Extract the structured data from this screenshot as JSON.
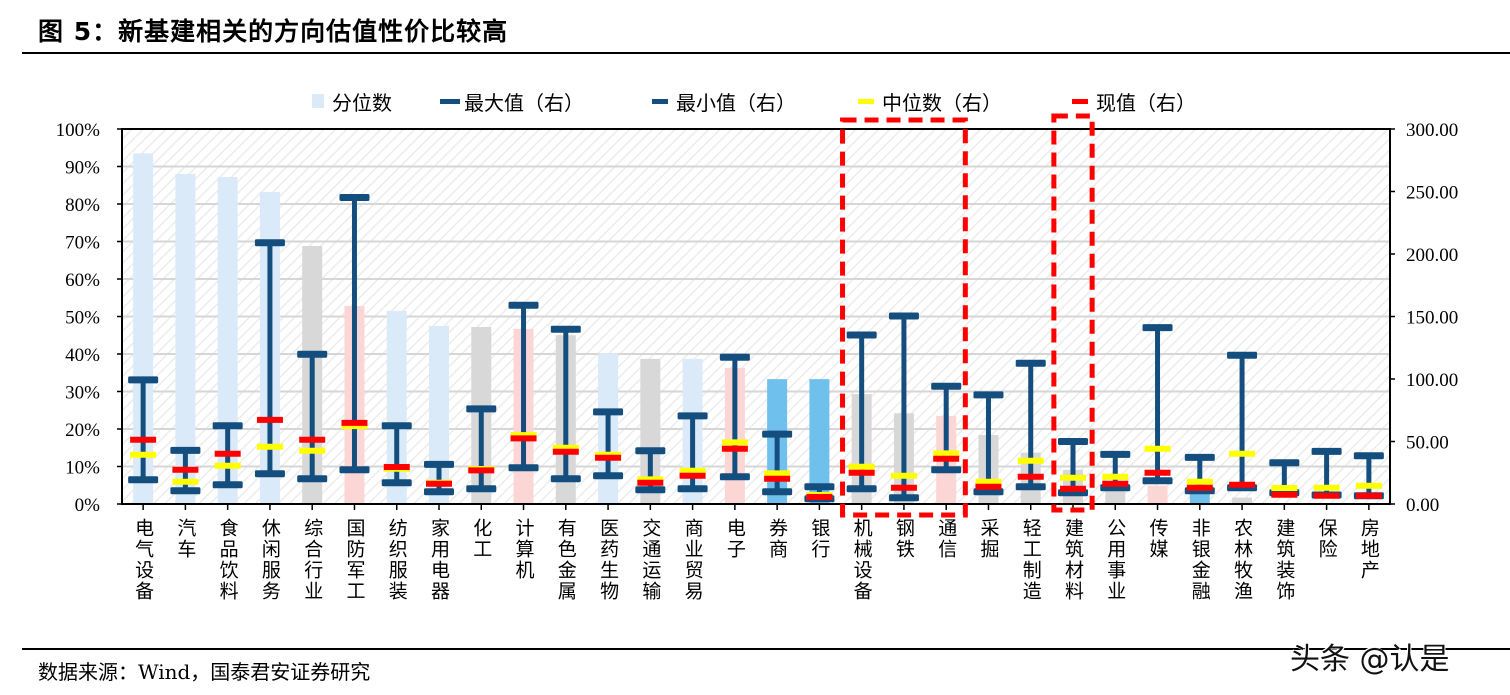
{
  "title": "图 5：新基建相关的方向估值性价比较高",
  "source": "数据来源：Wind，国泰君安证券研究",
  "watermark": "头条 @认是",
  "chart_data": {
    "type": "bar",
    "legend": [
      "分位数",
      "最大值（右）",
      "最小值（右）",
      "中位数（右）",
      "现值（右）"
    ],
    "legend_placement": "top",
    "colors": {
      "percentile_light_blue": "#dbeaf8",
      "percentile_gray": "#d8d8d8",
      "percentile_pink": "#fcd5d5",
      "percentile_blue": "#70c0ee",
      "max_min": "#144e7e",
      "median": "#ffff00",
      "current": "#ff0000",
      "highlight_box": "#ff0000"
    },
    "grid": true,
    "y_left": {
      "range": [
        0,
        100
      ],
      "unit": "%",
      "ticks": [
        "0%",
        "10%",
        "20%",
        "30%",
        "40%",
        "50%",
        "60%",
        "70%",
        "80%",
        "90%",
        "100%"
      ]
    },
    "y_right": {
      "range": [
        0,
        300
      ],
      "ticks": [
        "0.00",
        "50.00",
        "100.00",
        "150.00",
        "200.00",
        "250.00",
        "300.00"
      ]
    },
    "highlighted": [
      [
        "机械设备",
        "钢铁",
        "通信"
      ],
      [
        "建筑材料"
      ]
    ],
    "categories": [
      "电气设备",
      "汽车",
      "食品饮料",
      "休闲服务",
      "综合行业",
      "国防军工",
      "纺织服装",
      "家用电器",
      "化工",
      "计算机",
      "有色金属",
      "医药生物",
      "交通运输",
      "商业贸易",
      "电子",
      "券商",
      "银行",
      "机械设备",
      "钢铁",
      "通信",
      "采掘",
      "轻工制造",
      "建筑材料",
      "公用事业",
      "传媒",
      "非银金融",
      "农林牧渔",
      "建筑装饰",
      "保险",
      "房地产"
    ],
    "bar_color_group": [
      "light_blue",
      "light_blue",
      "light_blue",
      "light_blue",
      "gray",
      "pink",
      "light_blue",
      "light_blue",
      "gray",
      "pink",
      "gray",
      "light_blue",
      "gray",
      "light_blue",
      "pink",
      "blue",
      "blue",
      "gray",
      "gray",
      "pink",
      "gray",
      "gray",
      "gray",
      "gray",
      "pink",
      "blue",
      "gray",
      "gray",
      "gray",
      "gray"
    ],
    "series": [
      {
        "name": "分位数",
        "axis": "left",
        "values": [
          93.5,
          88,
          87.2,
          83.2,
          68.8,
          52.8,
          51.5,
          47.5,
          47.2,
          46.7,
          45,
          40.2,
          38.7,
          38.7,
          36.3,
          33.3,
          33.3,
          29.3,
          24.2,
          23.5,
          18.4,
          13.7,
          9.1,
          5.5,
          4.9,
          4.6,
          1.7,
          0,
          0,
          0
        ]
      },
      {
        "name": "最大值（右）",
        "axis": "right",
        "values": [
          99.3,
          42.9,
          62.6,
          209,
          119.8,
          245.2,
          62.6,
          31.7,
          76.1,
          159,
          139.8,
          73.7,
          42.6,
          70.5,
          117.4,
          55.9,
          13.8,
          135.2,
          150.4,
          94.2,
          87.3,
          112.6,
          50,
          39.7,
          141.1,
          37.3,
          119,
          33,
          42.1,
          38.6
        ]
      },
      {
        "name": "最小值（右）",
        "axis": "right",
        "values": [
          19.4,
          10.6,
          15.4,
          24.2,
          20.2,
          27.4,
          17,
          9.8,
          12.2,
          29,
          20.2,
          22.6,
          11.4,
          12.2,
          21.8,
          9.8,
          4.2,
          12.2,
          5,
          27.4,
          9.8,
          13.8,
          9,
          13,
          18.6,
          10.6,
          13,
          9,
          7.2,
          6.6
        ]
      },
      {
        "name": "中位数（右）",
        "axis": "right",
        "values": [
          39.4,
          17.8,
          30.6,
          45.8,
          42.6,
          62.3,
          28.2,
          17,
          28,
          55.1,
          45,
          39.4,
          19.7,
          26.6,
          49.3,
          24.5,
          7.2,
          29.8,
          22.6,
          40.5,
          17.8,
          34.6,
          21,
          21.8,
          44.2,
          17.8,
          40.2,
          12.8,
          13,
          14.6
        ]
      },
      {
        "name": "现值（右）",
        "axis": "right",
        "values": [
          51.4,
          27.4,
          40.2,
          67.3,
          51.4,
          64.9,
          29.6,
          16.2,
          26.9,
          52.5,
          41.8,
          37,
          17,
          22.6,
          44.2,
          20.2,
          5.6,
          25,
          13,
          36.2,
          13.8,
          21.8,
          12.2,
          16.2,
          25,
          13,
          15.4,
          7.4,
          6.6,
          6.6
        ]
      }
    ]
  }
}
